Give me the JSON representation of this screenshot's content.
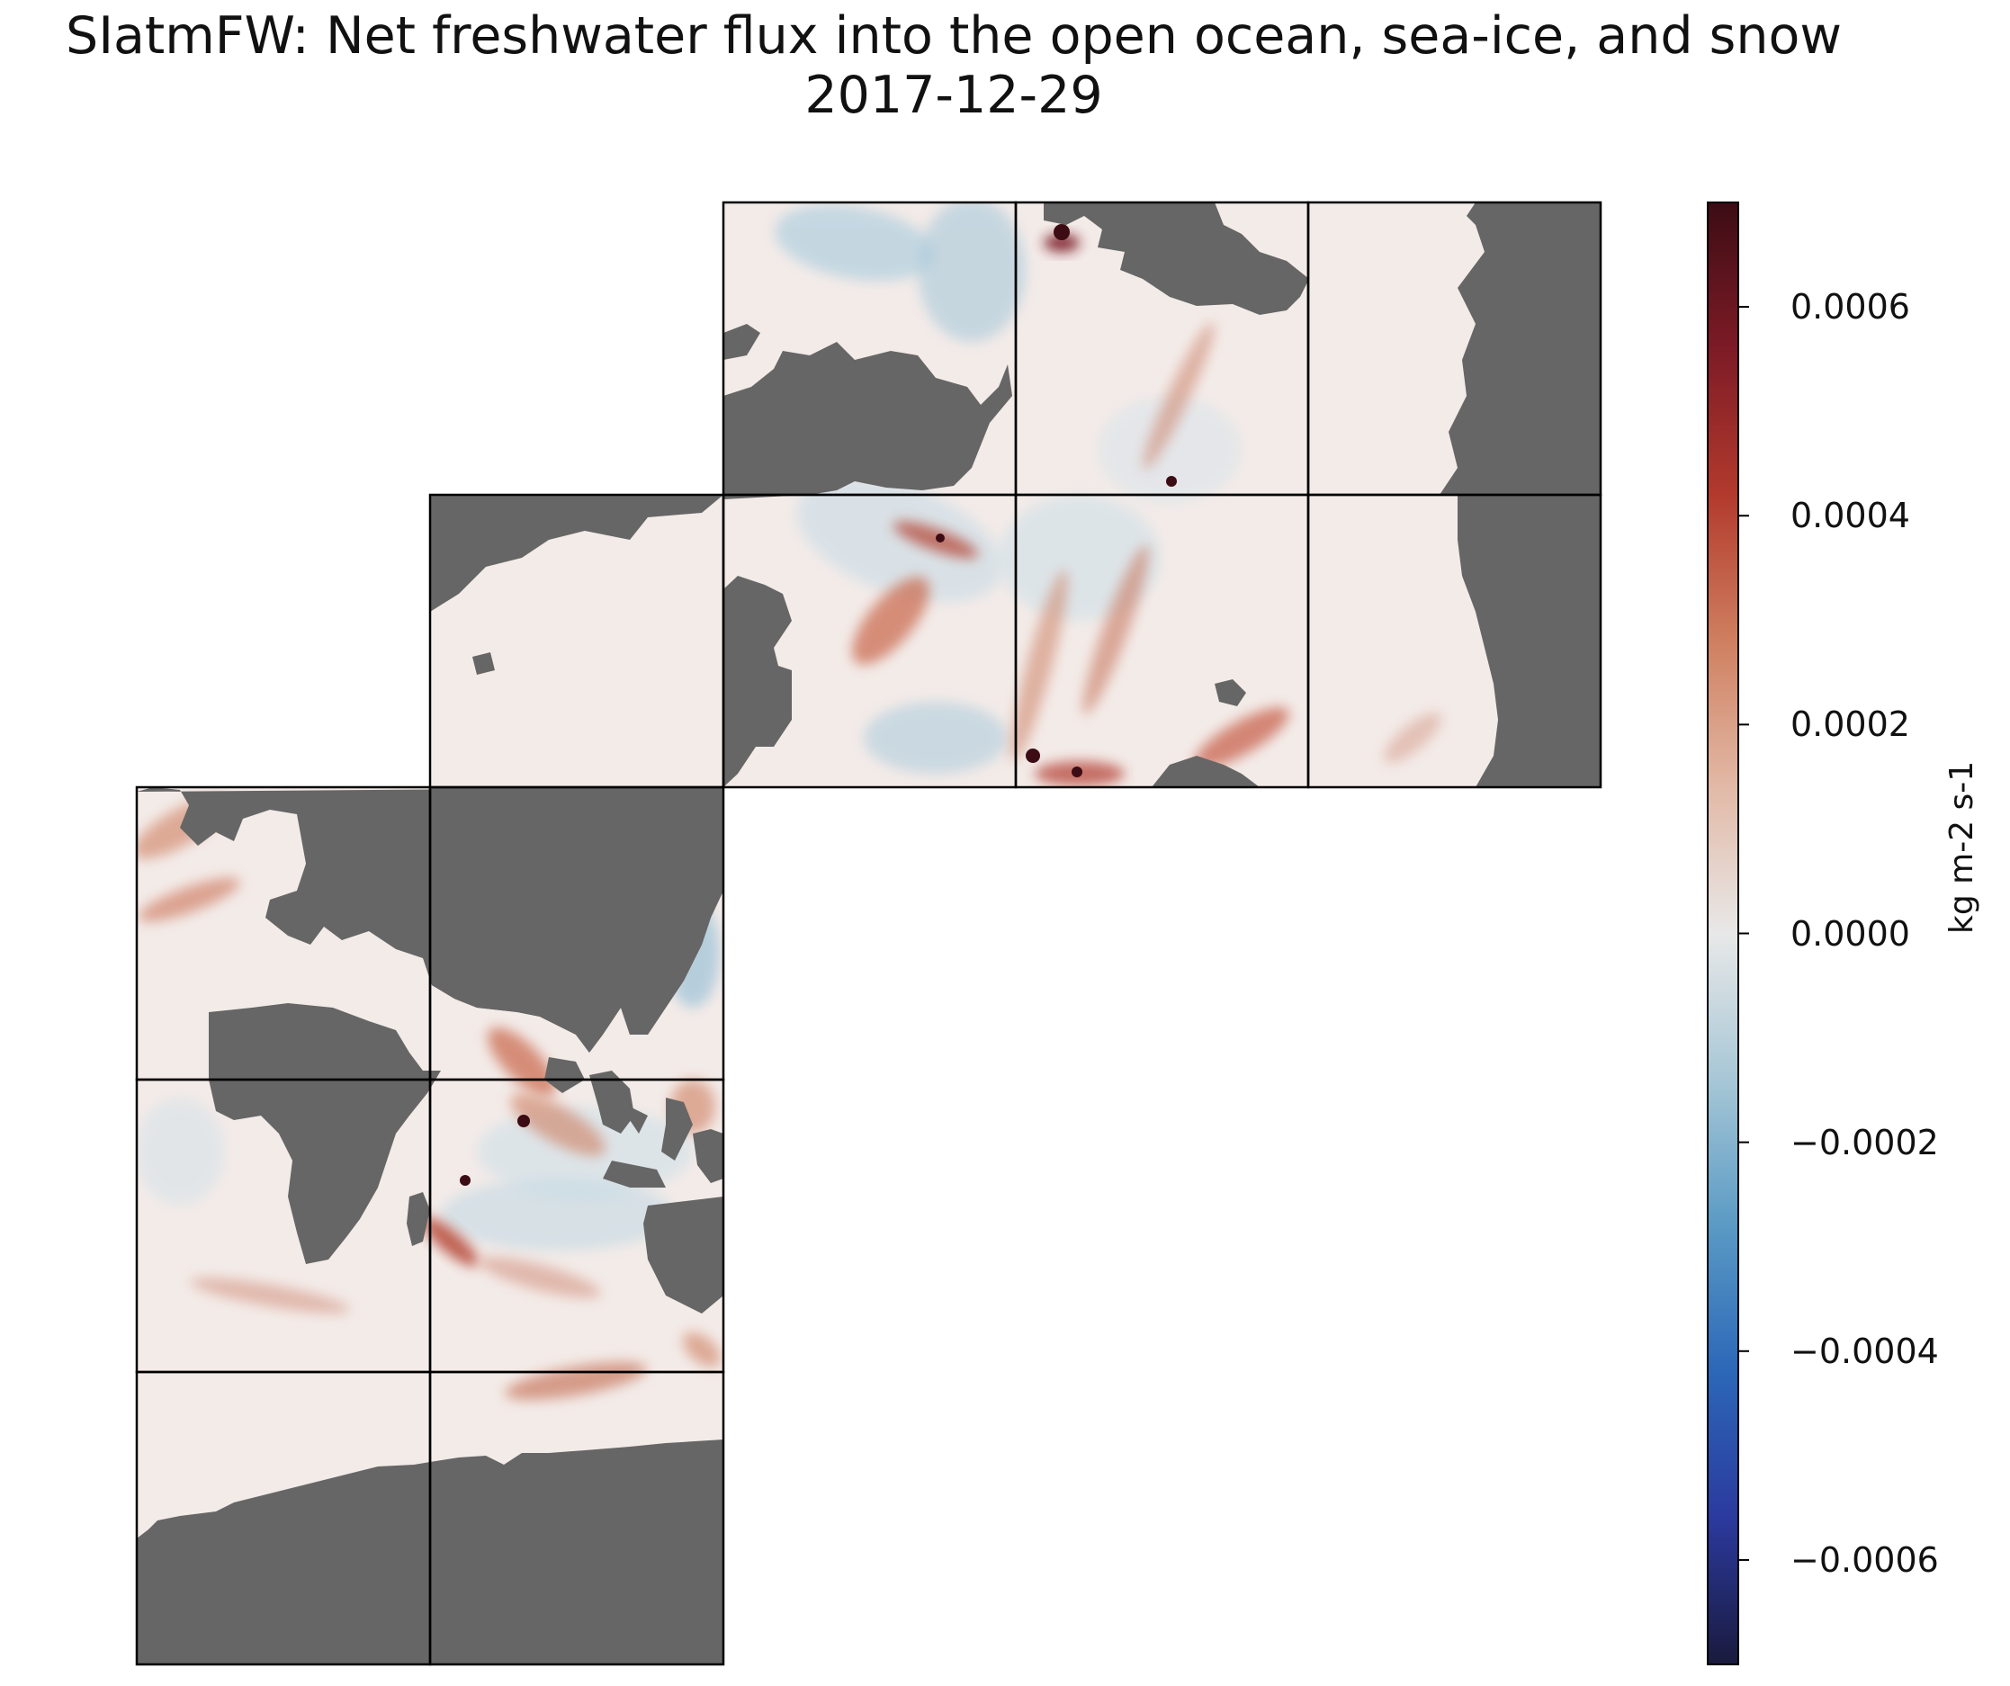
{
  "chart_data": {
    "type": "heatmap",
    "title": "SIatmFW: Net freshwater flux into the open ocean, sea-ice, and snow",
    "subtitle": "2017-12-29",
    "projection": "LLC tiles (13 faces)",
    "colorbar": {
      "label": "kg m-2 s-1",
      "vmin": -0.0007,
      "vmax": 0.0007,
      "ticks": [
        0.0006,
        0.0004,
        0.0002,
        0.0,
        -0.0002,
        -0.0004,
        -0.0006
      ],
      "tick_labels": [
        "0.0006",
        "0.0004",
        "0.0002",
        "0.0000",
        "−0.0002",
        "−0.0004",
        "−0.0006"
      ],
      "colormap": [
        "#1a1a3d",
        "#2b3a9e",
        "#2c67b8",
        "#5a9ac4",
        "#a7c7d6",
        "#e8e8e8",
        "#e2b9a6",
        "#cf7f60",
        "#b23a2d",
        "#7d1b26",
        "#3c0c14"
      ]
    },
    "land_color": "#666666",
    "missing_color": "#ffffff"
  }
}
